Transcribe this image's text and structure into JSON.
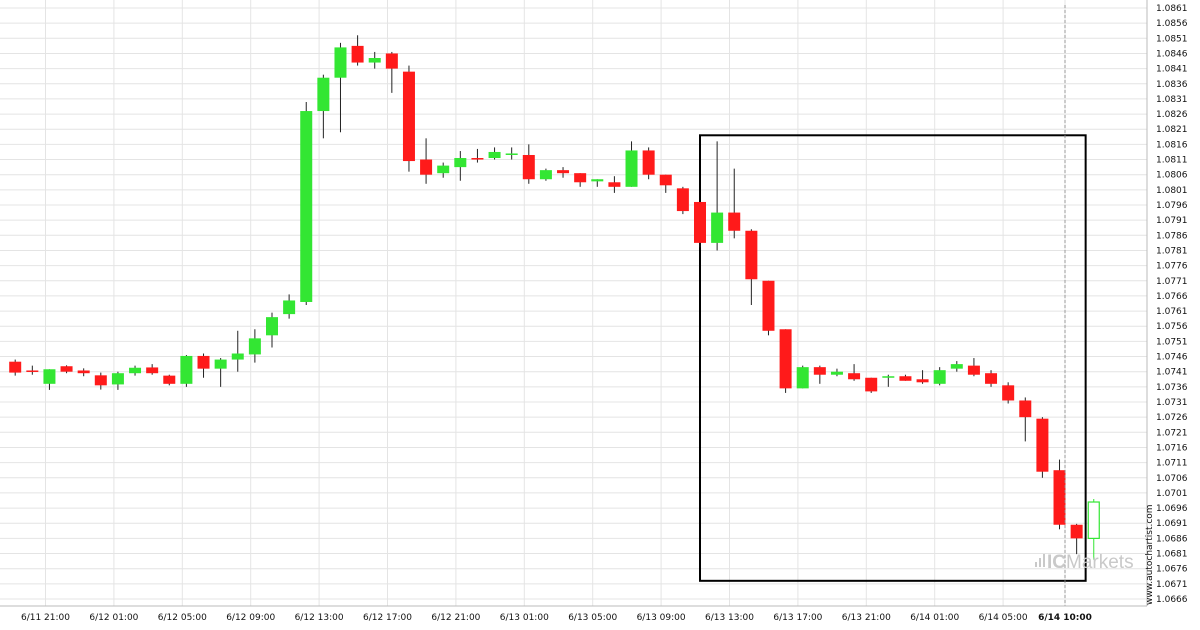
{
  "chart_data": {
    "type": "candlestick",
    "y_axis": {
      "min": 1.0666,
      "max": 1.0861,
      "step": 0.0005,
      "tick_labels": [
        "1.0861",
        "1.0856",
        "1.0851",
        "1.0846",
        "1.0841",
        "1.0836",
        "1.0831",
        "1.0826",
        "1.0821",
        "1.0816",
        "1.0811",
        "1.0806",
        "1.0801",
        "1.0796",
        "1.0791",
        "1.0786",
        "1.0781",
        "1.0776",
        "1.0771",
        "1.0766",
        "1.0761",
        "1.0756",
        "1.0751",
        "1.0746",
        "1.0741",
        "1.0736",
        "1.0731",
        "1.0726",
        "1.0721",
        "1.0716",
        "1.0711",
        "1.0706",
        "1.0701",
        "1.0696",
        "1.0691",
        "1.0686",
        "1.0681",
        "1.0676",
        "1.0671",
        "1.0666"
      ]
    },
    "x_axis": {
      "tick_labels": [
        "6/11 21:00",
        "6/12 01:00",
        "6/12 05:00",
        "6/12 09:00",
        "6/12 13:00",
        "6/12 17:00",
        "6/12 21:00",
        "6/13 01:00",
        "6/13 05:00",
        "6/13 09:00",
        "6/13 13:00",
        "6/13 17:00",
        "6/13 21:00",
        "6/14 01:00",
        "6/14 05:00",
        "6/14 10:00"
      ],
      "highlighted_label": "6/14 10:00"
    },
    "grid": true,
    "colors": {
      "up": "#33e633",
      "down": "#ff1a1a",
      "wick": "#222222",
      "grid": "#e4e4e4",
      "box": "#000000"
    },
    "candles": [
      {
        "o": 1.07443,
        "h": 1.0745,
        "l": 1.07397,
        "c": 1.07407
      },
      {
        "o": 1.07414,
        "h": 1.0743,
        "l": 1.074,
        "c": 1.0741
      },
      {
        "o": 1.0737,
        "h": 1.07418,
        "l": 1.0735,
        "c": 1.07418
      },
      {
        "o": 1.07428,
        "h": 1.07431,
        "l": 1.07405,
        "c": 1.0741
      },
      {
        "o": 1.07414,
        "h": 1.07421,
        "l": 1.07395,
        "c": 1.07405
      },
      {
        "o": 1.07398,
        "h": 1.07407,
        "l": 1.07351,
        "c": 1.07365
      },
      {
        "o": 1.07368,
        "h": 1.0741,
        "l": 1.0735,
        "c": 1.07405
      },
      {
        "o": 1.07405,
        "h": 1.0743,
        "l": 1.07397,
        "c": 1.07423
      },
      {
        "o": 1.07424,
        "h": 1.07435,
        "l": 1.074,
        "c": 1.07405
      },
      {
        "o": 1.07397,
        "h": 1.074,
        "l": 1.07365,
        "c": 1.0737
      },
      {
        "o": 1.0737,
        "h": 1.07465,
        "l": 1.0736,
        "c": 1.07462
      },
      {
        "o": 1.07462,
        "h": 1.0747,
        "l": 1.0739,
        "c": 1.0742
      },
      {
        "o": 1.0742,
        "h": 1.07455,
        "l": 1.0736,
        "c": 1.0745
      },
      {
        "o": 1.0745,
        "h": 1.07545,
        "l": 1.0741,
        "c": 1.0747
      },
      {
        "o": 1.07467,
        "h": 1.0755,
        "l": 1.0744,
        "c": 1.0752
      },
      {
        "o": 1.0753,
        "h": 1.07605,
        "l": 1.0749,
        "c": 1.0759
      },
      {
        "o": 1.076,
        "h": 1.07665,
        "l": 1.07585,
        "c": 1.07645
      },
      {
        "o": 1.0764,
        "h": 1.083,
        "l": 1.0763,
        "c": 1.0827
      },
      {
        "o": 1.0827,
        "h": 1.0839,
        "l": 1.0818,
        "c": 1.0838
      },
      {
        "o": 1.0838,
        "h": 1.08495,
        "l": 1.082,
        "c": 1.0848
      },
      {
        "o": 1.08485,
        "h": 1.0852,
        "l": 1.0842,
        "c": 1.0843
      },
      {
        "o": 1.0843,
        "h": 1.08465,
        "l": 1.0841,
        "c": 1.08445
      },
      {
        "o": 1.0846,
        "h": 1.08465,
        "l": 1.0833,
        "c": 1.0841
      },
      {
        "o": 1.084,
        "h": 1.0842,
        "l": 1.0807,
        "c": 1.08105
      },
      {
        "o": 1.0811,
        "h": 1.0818,
        "l": 1.0803,
        "c": 1.0806
      },
      {
        "o": 1.08065,
        "h": 1.081,
        "l": 1.0805,
        "c": 1.0809
      },
      {
        "o": 1.08085,
        "h": 1.08138,
        "l": 1.0804,
        "c": 1.08115
      },
      {
        "o": 1.08115,
        "h": 1.08145,
        "l": 1.081,
        "c": 1.0811
      },
      {
        "o": 1.08115,
        "h": 1.0815,
        "l": 1.0811,
        "c": 1.08135
      },
      {
        "o": 1.08128,
        "h": 1.0815,
        "l": 1.0811,
        "c": 1.0813
      },
      {
        "o": 1.08125,
        "h": 1.0816,
        "l": 1.0803,
        "c": 1.08045
      },
      {
        "o": 1.08045,
        "h": 1.0808,
        "l": 1.0804,
        "c": 1.08075
      },
      {
        "o": 1.08075,
        "h": 1.08085,
        "l": 1.0805,
        "c": 1.08065
      },
      {
        "o": 1.08065,
        "h": 1.08065,
        "l": 1.0802,
        "c": 1.08035
      },
      {
        "o": 1.08038,
        "h": 1.08045,
        "l": 1.0802,
        "c": 1.08045
      },
      {
        "o": 1.08035,
        "h": 1.08055,
        "l": 1.08,
        "c": 1.0802
      },
      {
        "o": 1.0802,
        "h": 1.0817,
        "l": 1.0802,
        "c": 1.0814
      },
      {
        "o": 1.0814,
        "h": 1.0815,
        "l": 1.08045,
        "c": 1.0806
      },
      {
        "o": 1.0806,
        "h": 1.0806,
        "l": 1.08,
        "c": 1.08025
      },
      {
        "o": 1.08015,
        "h": 1.0802,
        "l": 1.0793,
        "c": 1.0794
      },
      {
        "o": 1.0797,
        "h": 1.0797,
        "l": 1.0782,
        "c": 1.07835
      },
      {
        "o": 1.07835,
        "h": 1.0817,
        "l": 1.0781,
        "c": 1.07935
      },
      {
        "o": 1.07935,
        "h": 1.0808,
        "l": 1.0785,
        "c": 1.07875
      },
      {
        "o": 1.07875,
        "h": 1.0788,
        "l": 1.0763,
        "c": 1.07715
      },
      {
        "o": 1.0771,
        "h": 1.0771,
        "l": 1.0753,
        "c": 1.07545
      },
      {
        "o": 1.0755,
        "h": 1.0755,
        "l": 1.0734,
        "c": 1.07355
      },
      {
        "o": 1.07355,
        "h": 1.0743,
        "l": 1.07355,
        "c": 1.07425
      },
      {
        "o": 1.07425,
        "h": 1.0743,
        "l": 1.0737,
        "c": 1.074
      },
      {
        "o": 1.074,
        "h": 1.0742,
        "l": 1.07395,
        "c": 1.0741
      },
      {
        "o": 1.07405,
        "h": 1.07435,
        "l": 1.0738,
        "c": 1.07385
      },
      {
        "o": 1.0739,
        "h": 1.0739,
        "l": 1.0734,
        "c": 1.07345
      },
      {
        "o": 1.0739,
        "h": 1.074,
        "l": 1.0736,
        "c": 1.07395
      },
      {
        "o": 1.07395,
        "h": 1.074,
        "l": 1.0738,
        "c": 1.0738
      },
      {
        "o": 1.07385,
        "h": 1.07415,
        "l": 1.0737,
        "c": 1.07375
      },
      {
        "o": 1.0737,
        "h": 1.07425,
        "l": 1.07365,
        "c": 1.07415
      },
      {
        "o": 1.0742,
        "h": 1.07445,
        "l": 1.0741,
        "c": 1.07435
      },
      {
        "o": 1.0743,
        "h": 1.07455,
        "l": 1.07395,
        "c": 1.074
      },
      {
        "o": 1.07405,
        "h": 1.07415,
        "l": 1.0736,
        "c": 1.0737
      },
      {
        "o": 1.07365,
        "h": 1.07375,
        "l": 1.07305,
        "c": 1.07315
      },
      {
        "o": 1.07315,
        "h": 1.07325,
        "l": 1.0718,
        "c": 1.0726
      },
      {
        "o": 1.07255,
        "h": 1.0726,
        "l": 1.0706,
        "c": 1.0708
      },
      {
        "o": 1.07085,
        "h": 1.0712,
        "l": 1.0689,
        "c": 1.06905
      },
      {
        "o": 1.06905,
        "h": 1.06908,
        "l": 1.06808,
        "c": 1.0686
      },
      {
        "o": 1.0686,
        "h": 1.0699,
        "l": 1.0679,
        "c": 1.0698
      }
    ],
    "box": {
      "start_label": "6/13 13:00",
      "high": 1.0819,
      "low": 1.0672,
      "last_index": 62
    },
    "current_time_line": {
      "label": "6/14 10:00"
    }
  },
  "watermark": {
    "url": "www.autochartist.com",
    "brand_ic": "IC",
    "brand_markets": "Markets"
  }
}
